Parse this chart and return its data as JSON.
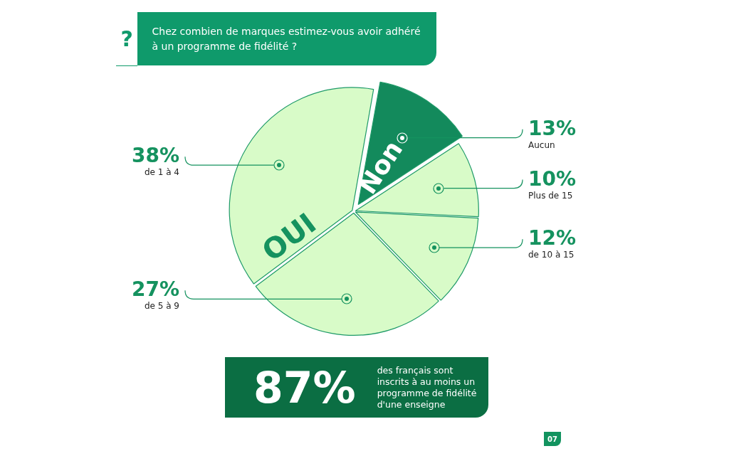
{
  "chart_data": {
    "type": "pie",
    "title": "Chez combien de marques estimez-vous avoir adhéré à un programme de fidélité ?",
    "categories": [
      "Aucun",
      "Plus de 15",
      "de 10 à 15",
      "de 5 à 9",
      "de 1 à 4"
    ],
    "values": [
      13,
      10,
      12,
      27,
      38
    ],
    "colors": [
      "#138a5c",
      "#d8fbc8",
      "#d8fbc8",
      "#d8fbc8",
      "#d8fbc8"
    ],
    "value_labels": [
      "13%",
      "10%",
      "12%",
      "27%",
      "38%"
    ],
    "legend": false,
    "annotations": [
      "OUI",
      "Non",
      "87%",
      "des français sont inscrits à au moins un programme de fidélité d'une enseigne",
      "07",
      "?"
    ]
  }
}
